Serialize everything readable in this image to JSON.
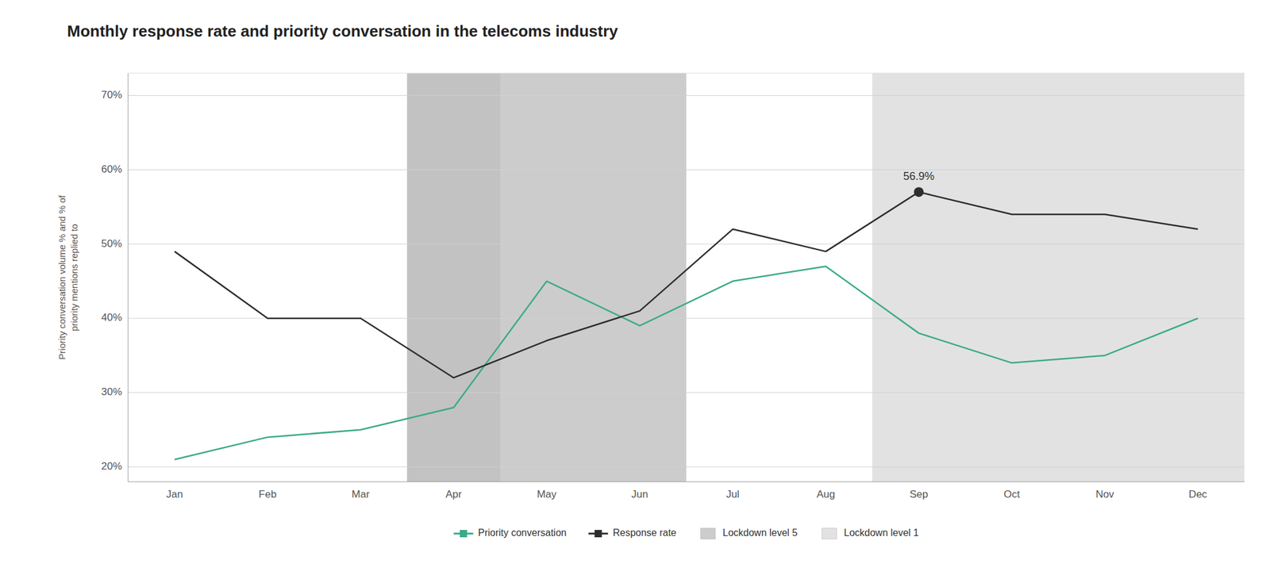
{
  "chart_data": {
    "type": "line",
    "title": "Monthly response rate and priority conversation in the telecoms industry",
    "ylabel": "Priority conversation volume % and % of\npriority mentions replied to",
    "categories": [
      "Jan",
      "Feb",
      "Mar",
      "Apr",
      "May",
      "Jun",
      "Jul",
      "Aug",
      "Sep",
      "Oct",
      "Nov",
      "Dec"
    ],
    "series": [
      {
        "name": "Priority conversation",
        "color": "#3aaa8a",
        "values": [
          21,
          24,
          25,
          28,
          45,
          39,
          45,
          47,
          38,
          34,
          35,
          40
        ]
      },
      {
        "name": "Response rate",
        "color": "#2d2d2d",
        "values": [
          49,
          40,
          40,
          32,
          37,
          41,
          52,
          49,
          57,
          54,
          54,
          52
        ]
      }
    ],
    "regions": [
      {
        "name": "Lockdown level 5",
        "color": "#cccccc",
        "from": "Apr",
        "to": "Jun"
      },
      {
        "color": "#c2c2c2",
        "from": "Apr",
        "to": "Apr"
      },
      {
        "name": "Lockdown level 1",
        "color": "#e2e2e2",
        "from": "Sep",
        "to": "Dec"
      }
    ],
    "annotations": [
      {
        "text": "56.9%",
        "x": "Sep",
        "y": 57
      }
    ],
    "ylim": [
      18,
      73
    ],
    "yticks": [
      {
        "value": 20,
        "label": "20%"
      },
      {
        "value": 30,
        "label": "30%"
      },
      {
        "value": 40,
        "label": "40%"
      },
      {
        "value": 50,
        "label": "50%"
      },
      {
        "value": 60,
        "label": "60%"
      },
      {
        "value": 70,
        "label": "70%"
      }
    ],
    "grid": true,
    "legend": "bottom"
  }
}
